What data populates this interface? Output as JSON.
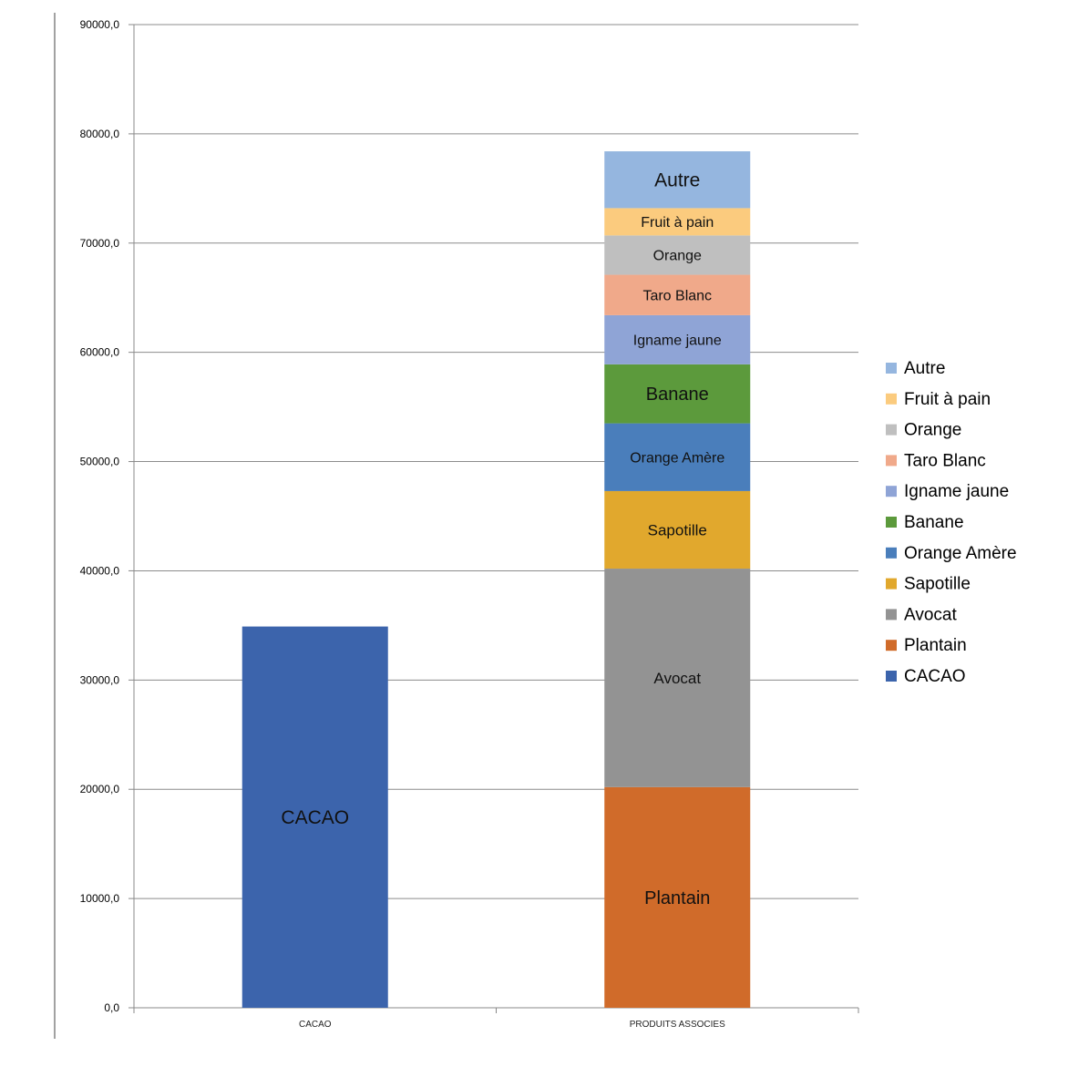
{
  "chart_data": {
    "type": "bar",
    "stacked": true,
    "categories": [
      "CACAO",
      "PRODUITS ASSOCIES"
    ],
    "ylim": [
      0,
      90000
    ],
    "yticks": [
      "0,0",
      "10000,0",
      "20000,0",
      "30000,0",
      "40000,0",
      "50000,0",
      "60000,0",
      "70000,0",
      "80000,0",
      "90000,0"
    ],
    "grid": true,
    "legend_position": "right",
    "series": [
      {
        "name": "CACAO",
        "color": "#3C64AC",
        "values": [
          34900,
          0
        ],
        "bar_labels": [
          "CACAO",
          ""
        ]
      },
      {
        "name": "Plantain",
        "color": "#D06B2A",
        "values": [
          0,
          20200
        ],
        "bar_labels": [
          "",
          "Plantain"
        ]
      },
      {
        "name": "Avocat",
        "color": "#939393",
        "values": [
          0,
          20000
        ],
        "bar_labels": [
          "",
          "Avocat"
        ]
      },
      {
        "name": "Sapotille",
        "color": "#E1A82D",
        "values": [
          0,
          7100
        ],
        "bar_labels": [
          "",
          "Sapotille"
        ]
      },
      {
        "name": "Orange Amère",
        "color": "#4A7EBB",
        "values": [
          0,
          6200
        ],
        "bar_labels": [
          "",
          "Orange Amère"
        ]
      },
      {
        "name": "Banane",
        "color": "#5C9A3C",
        "values": [
          0,
          5400
        ],
        "bar_labels": [
          "",
          "Banane"
        ]
      },
      {
        "name": "Igname jaune",
        "color": "#8FA4D6",
        "values": [
          0,
          4500
        ],
        "bar_labels": [
          "",
          "Igname jaune"
        ]
      },
      {
        "name": "Taro Blanc",
        "color": "#F0A98A",
        "values": [
          0,
          3700
        ],
        "bar_labels": [
          "",
          "Taro Blanc"
        ]
      },
      {
        "name": "Orange",
        "color": "#BFBFBF",
        "values": [
          0,
          3600
        ],
        "bar_labels": [
          "",
          "Orange"
        ]
      },
      {
        "name": "Fruit à pain",
        "color": "#FBCB7E",
        "values": [
          0,
          2500
        ],
        "bar_labels": [
          "",
          "Fruit à pain"
        ]
      },
      {
        "name": "Autre",
        "color": "#95B6DF",
        "values": [
          0,
          5200
        ],
        "bar_labels": [
          "",
          "Autre"
        ]
      }
    ]
  }
}
